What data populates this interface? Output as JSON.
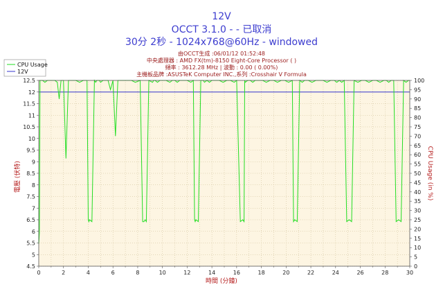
{
  "header": {
    "title": "12V",
    "subtitle1": "OCCT 3.1.0 -  - 已取消",
    "subtitle2": "30分 2秒 - 1024x768@60Hz - windowed",
    "info1": "由OCCT生成 :06/01/12 01:52:48",
    "info2": "中央處理器 : AMD FX(tm)-8150 Eight-Core Processor    (        )",
    "info3": "頻率 : 3612.28 MHz | 波動 : 0.00 ( 0.00%)",
    "info4": "主機板品牌 :ASUSTeK Computer INC.,系列 :Crosshair V Formula"
  },
  "colors": {
    "voltage": "#3333cc",
    "cpu": "#22dd22",
    "plot_bg": "#fdf5e2",
    "grid": "#c9b98e",
    "axis_label": "#b51c1c"
  },
  "chart_data": {
    "type": "line",
    "xlabel": "時間 (分鐘)",
    "ylabel_left": "電壓 (伏特)",
    "ylabel_right": "CPU Usage (in %)",
    "xlim": [
      0,
      30
    ],
    "ylim_left": [
      4.5,
      12.5
    ],
    "ylim_right": [
      0,
      100
    ],
    "x_ticks": [
      "0",
      "2",
      "4",
      "6",
      "8",
      "10",
      "12",
      "14",
      "16",
      "18",
      "20",
      "22",
      "24",
      "26",
      "28",
      "30"
    ],
    "y_left_ticks": [
      "4.5",
      "5",
      "5.5",
      "6",
      "6.5",
      "7",
      "7.5",
      "8",
      "8.5",
      "9",
      "9.5",
      "10",
      "10.5",
      "11",
      "11.5",
      "12",
      "12.5"
    ],
    "y_right_ticks": [
      "0",
      "5",
      "10",
      "15",
      "20",
      "25",
      "30",
      "35",
      "40",
      "45",
      "50",
      "55",
      "60",
      "65",
      "70",
      "75",
      "80",
      "85",
      "90",
      "95",
      "100"
    ],
    "legend": [
      "CPU Usage",
      "12V"
    ],
    "grid": true,
    "legend_position": "top-left",
    "series": [
      {
        "name": "12V",
        "axis": "left",
        "x": [
          0,
          30
        ],
        "values": [
          12.0,
          12.0
        ]
      },
      {
        "name": "CPU Usage",
        "axis": "right",
        "x": [
          0,
          0.05,
          0.1,
          0.3,
          0.5,
          0.7,
          0.9,
          1.1,
          1.3,
          1.5,
          1.65,
          1.8,
          2.0,
          2.2,
          2.4,
          2.6,
          2.8,
          3.0,
          3.3,
          3.6,
          3.9,
          4.0,
          4.05,
          4.1,
          4.3,
          4.5,
          4.6,
          4.7,
          4.9,
          5.0,
          5.2,
          5.4,
          5.6,
          5.8,
          6.0,
          6.2,
          6.4,
          6.6,
          6.8,
          7.0,
          7.2,
          7.5,
          7.8,
          8.2,
          8.4,
          8.5,
          8.6,
          8.7,
          8.9,
          9.2,
          9.3,
          9.4,
          9.6,
          9.8,
          10.0,
          10.3,
          10.6,
          10.8,
          11.0,
          11.2,
          11.4,
          11.7,
          12.0,
          12.3,
          12.5,
          12.6,
          12.65,
          12.7,
          12.9,
          13.1,
          13.3,
          13.4,
          13.6,
          13.8,
          14.0,
          14.3,
          14.6,
          14.9,
          15.2,
          15.5,
          15.8,
          16.0,
          16.3,
          16.5,
          16.6,
          16.65,
          16.7,
          16.9,
          17.1,
          17.3,
          17.5,
          17.8,
          18.1,
          18.4,
          18.7,
          19.0,
          19.3,
          19.6,
          19.9,
          20.2,
          20.5,
          20.6,
          20.7,
          20.9,
          21.1,
          21.3,
          21.5,
          21.8,
          22.1,
          22.4,
          22.7,
          23.0,
          23.3,
          23.6,
          23.9,
          24.1,
          24.3,
          24.5,
          24.7,
          24.9,
          25.1,
          25.3,
          25.5,
          25.8,
          26.1,
          26.4,
          26.7,
          27.0,
          27.3,
          27.6,
          27.9,
          28.1,
          28.3,
          28.5,
          28.7,
          28.9,
          29.1,
          29.3,
          29.5,
          29.7,
          29.9,
          30.0
        ],
        "values": [
          12,
          18,
          100,
          100,
          99,
          100,
          100,
          100,
          100,
          99,
          90,
          100,
          100,
          58,
          100,
          100,
          100,
          100,
          99,
          100,
          100,
          25,
          24,
          25,
          24,
          100,
          99,
          100,
          100,
          99,
          100,
          100,
          100,
          95,
          100,
          70,
          100,
          100,
          100,
          100,
          100,
          100,
          99,
          100,
          24,
          24,
          25,
          24,
          100,
          99,
          100,
          100,
          99,
          100,
          100,
          100,
          99,
          100,
          100,
          99,
          100,
          100,
          100,
          99,
          100,
          25,
          24,
          25,
          24,
          100,
          100,
          99,
          100,
          99,
          100,
          100,
          100,
          99,
          100,
          100,
          99,
          100,
          24,
          25,
          24,
          100,
          99,
          100,
          100,
          99,
          100,
          100,
          100,
          99,
          100,
          100,
          99,
          100,
          100,
          99,
          100,
          24,
          25,
          24,
          100,
          99,
          100,
          100,
          99,
          100,
          100,
          100,
          99,
          100,
          100,
          99,
          100,
          99,
          100,
          24,
          25,
          24,
          100,
          99,
          100,
          100,
          99,
          100,
          100,
          99,
          100,
          100,
          99,
          100,
          100,
          24,
          25,
          24,
          100,
          99,
          100,
          100
        ]
      }
    ]
  }
}
